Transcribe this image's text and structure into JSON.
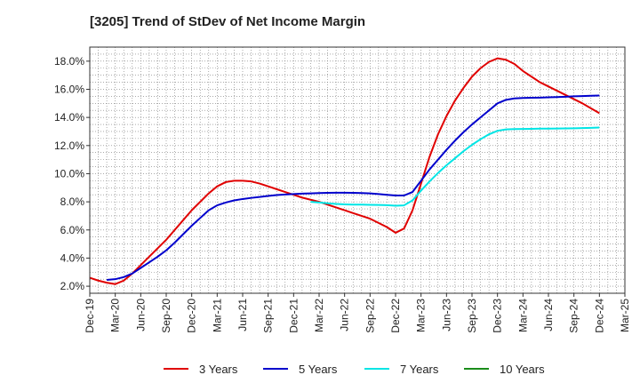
{
  "chart_data": {
    "type": "line",
    "title": "[3205]  Trend of StDev of Net Income Margin",
    "xlabel": "",
    "ylabel": "",
    "x_start": "2019-12",
    "x_end": "2025-03",
    "x_tick_labels": [
      "Dec-19",
      "Mar-20",
      "Jun-20",
      "Sep-20",
      "Dec-20",
      "Mar-21",
      "Jun-21",
      "Sep-21",
      "Dec-21",
      "Mar-22",
      "Jun-22",
      "Sep-22",
      "Dec-22",
      "Mar-23",
      "Jun-23",
      "Sep-23",
      "Dec-23",
      "Mar-24",
      "Jun-24",
      "Sep-24",
      "Dec-24",
      "Mar-25"
    ],
    "ylim": [
      1.5,
      19.0
    ],
    "y_ticks": [
      2.0,
      4.0,
      6.0,
      8.0,
      10.0,
      12.0,
      14.0,
      16.0,
      18.0
    ],
    "y_tick_labels": [
      "2.0%",
      "4.0%",
      "6.0%",
      "8.0%",
      "10.0%",
      "12.0%",
      "14.0%",
      "16.0%",
      "18.0%"
    ],
    "grid": true,
    "legend_position": "bottom",
    "series": [
      {
        "name": "3 Years",
        "color": "#e00000",
        "points": [
          [
            "2019-12",
            2.6
          ],
          [
            "2020-01",
            2.4
          ],
          [
            "2020-02",
            2.25
          ],
          [
            "2020-03",
            2.15
          ],
          [
            "2020-04",
            2.4
          ],
          [
            "2020-05",
            2.9
          ],
          [
            "2020-06",
            3.5
          ],
          [
            "2020-07",
            4.1
          ],
          [
            "2020-08",
            4.7
          ],
          [
            "2020-09",
            5.3
          ],
          [
            "2020-10",
            6.0
          ],
          [
            "2020-11",
            6.7
          ],
          [
            "2020-12",
            7.4
          ],
          [
            "2021-01",
            8.0
          ],
          [
            "2021-02",
            8.6
          ],
          [
            "2021-03",
            9.1
          ],
          [
            "2021-04",
            9.4
          ],
          [
            "2021-05",
            9.5
          ],
          [
            "2021-06",
            9.5
          ],
          [
            "2021-07",
            9.45
          ],
          [
            "2021-08",
            9.3
          ],
          [
            "2021-09",
            9.1
          ],
          [
            "2021-10",
            8.9
          ],
          [
            "2021-11",
            8.7
          ],
          [
            "2021-12",
            8.5
          ],
          [
            "2022-01",
            8.3
          ],
          [
            "2022-02",
            8.15
          ],
          [
            "2022-03",
            8.0
          ],
          [
            "2022-04",
            7.8
          ],
          [
            "2022-05",
            7.6
          ],
          [
            "2022-06",
            7.4
          ],
          [
            "2022-07",
            7.2
          ],
          [
            "2022-08",
            7.0
          ],
          [
            "2022-09",
            6.8
          ],
          [
            "2022-10",
            6.5
          ],
          [
            "2022-11",
            6.2
          ],
          [
            "2022-12",
            5.8
          ],
          [
            "2023-01",
            6.1
          ],
          [
            "2023-02",
            7.4
          ],
          [
            "2023-03",
            9.3
          ],
          [
            "2023-04",
            11.2
          ],
          [
            "2023-05",
            12.8
          ],
          [
            "2023-06",
            14.1
          ],
          [
            "2023-07",
            15.2
          ],
          [
            "2023-08",
            16.1
          ],
          [
            "2023-09",
            16.9
          ],
          [
            "2023-10",
            17.5
          ],
          [
            "2023-11",
            17.95
          ],
          [
            "2023-12",
            18.2
          ],
          [
            "2024-01",
            18.1
          ],
          [
            "2024-02",
            17.8
          ],
          [
            "2024-03",
            17.3
          ],
          [
            "2024-04",
            16.9
          ],
          [
            "2024-05",
            16.5
          ],
          [
            "2024-06",
            16.2
          ],
          [
            "2024-07",
            15.9
          ],
          [
            "2024-08",
            15.6
          ],
          [
            "2024-09",
            15.3
          ],
          [
            "2024-10",
            15.0
          ],
          [
            "2024-11",
            14.65
          ],
          [
            "2024-12",
            14.3
          ]
        ]
      },
      {
        "name": "5 Years",
        "color": "#0000cc",
        "points": [
          [
            "2020-02",
            2.45
          ],
          [
            "2020-03",
            2.5
          ],
          [
            "2020-04",
            2.65
          ],
          [
            "2020-05",
            2.9
          ],
          [
            "2020-06",
            3.3
          ],
          [
            "2020-07",
            3.7
          ],
          [
            "2020-08",
            4.1
          ],
          [
            "2020-09",
            4.55
          ],
          [
            "2020-10",
            5.1
          ],
          [
            "2020-11",
            5.7
          ],
          [
            "2020-12",
            6.3
          ],
          [
            "2021-01",
            6.85
          ],
          [
            "2021-02",
            7.4
          ],
          [
            "2021-03",
            7.75
          ],
          [
            "2021-04",
            7.95
          ],
          [
            "2021-05",
            8.1
          ],
          [
            "2021-06",
            8.2
          ],
          [
            "2021-07",
            8.28
          ],
          [
            "2021-08",
            8.35
          ],
          [
            "2021-09",
            8.42
          ],
          [
            "2021-10",
            8.48
          ],
          [
            "2021-11",
            8.52
          ],
          [
            "2021-12",
            8.55
          ],
          [
            "2022-01",
            8.58
          ],
          [
            "2022-02",
            8.6
          ],
          [
            "2022-03",
            8.62
          ],
          [
            "2022-04",
            8.64
          ],
          [
            "2022-05",
            8.65
          ],
          [
            "2022-06",
            8.65
          ],
          [
            "2022-07",
            8.64
          ],
          [
            "2022-08",
            8.62
          ],
          [
            "2022-09",
            8.6
          ],
          [
            "2022-10",
            8.55
          ],
          [
            "2022-11",
            8.5
          ],
          [
            "2022-12",
            8.45
          ],
          [
            "2023-01",
            8.45
          ],
          [
            "2023-02",
            8.7
          ],
          [
            "2023-03",
            9.5
          ],
          [
            "2023-04",
            10.3
          ],
          [
            "2023-05",
            11.0
          ],
          [
            "2023-06",
            11.7
          ],
          [
            "2023-07",
            12.35
          ],
          [
            "2023-08",
            12.95
          ],
          [
            "2023-09",
            13.5
          ],
          [
            "2023-10",
            14.0
          ],
          [
            "2023-11",
            14.5
          ],
          [
            "2023-12",
            15.0
          ],
          [
            "2024-01",
            15.25
          ],
          [
            "2024-02",
            15.35
          ],
          [
            "2024-03",
            15.38
          ],
          [
            "2024-04",
            15.4
          ],
          [
            "2024-05",
            15.41
          ],
          [
            "2024-06",
            15.43
          ],
          [
            "2024-07",
            15.45
          ],
          [
            "2024-08",
            15.47
          ],
          [
            "2024-09",
            15.5
          ],
          [
            "2024-10",
            15.52
          ],
          [
            "2024-11",
            15.54
          ],
          [
            "2024-12",
            15.56
          ]
        ]
      },
      {
        "name": "7 Years",
        "color": "#00e5e5",
        "points": [
          [
            "2022-02",
            8.0
          ],
          [
            "2022-03",
            7.95
          ],
          [
            "2022-04",
            7.9
          ],
          [
            "2022-05",
            7.85
          ],
          [
            "2022-06",
            7.82
          ],
          [
            "2022-07",
            7.8
          ],
          [
            "2022-08",
            7.8
          ],
          [
            "2022-09",
            7.79
          ],
          [
            "2022-10",
            7.78
          ],
          [
            "2022-11",
            7.76
          ],
          [
            "2022-12",
            7.72
          ],
          [
            "2023-01",
            7.75
          ],
          [
            "2023-02",
            8.1
          ],
          [
            "2023-03",
            8.8
          ],
          [
            "2023-04",
            9.45
          ],
          [
            "2023-05",
            10.05
          ],
          [
            "2023-06",
            10.6
          ],
          [
            "2023-07",
            11.1
          ],
          [
            "2023-08",
            11.6
          ],
          [
            "2023-09",
            12.05
          ],
          [
            "2023-10",
            12.45
          ],
          [
            "2023-11",
            12.8
          ],
          [
            "2023-12",
            13.05
          ],
          [
            "2024-01",
            13.15
          ],
          [
            "2024-02",
            13.17
          ],
          [
            "2024-03",
            13.18
          ],
          [
            "2024-04",
            13.19
          ],
          [
            "2024-05",
            13.2
          ],
          [
            "2024-06",
            13.2
          ],
          [
            "2024-07",
            13.21
          ],
          [
            "2024-08",
            13.22
          ],
          [
            "2024-09",
            13.23
          ],
          [
            "2024-10",
            13.24
          ],
          [
            "2024-11",
            13.26
          ],
          [
            "2024-12",
            13.28
          ]
        ]
      },
      {
        "name": "10 Years",
        "color": "#1a8c1a",
        "points": []
      }
    ]
  }
}
